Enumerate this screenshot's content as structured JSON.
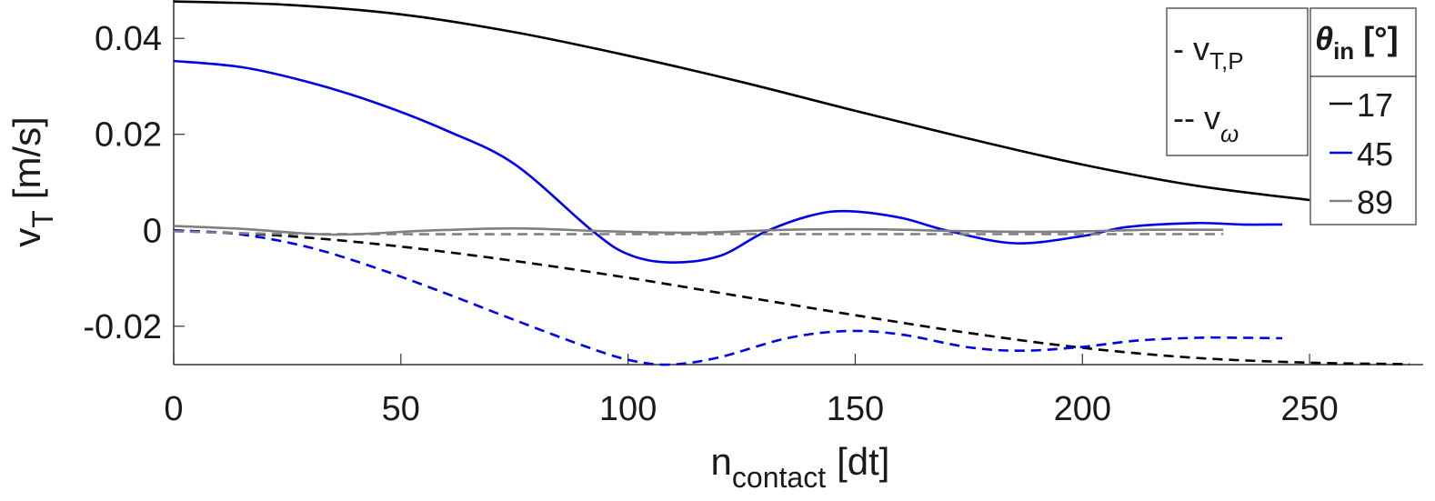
{
  "chart_data": {
    "type": "line",
    "xlabel_main": "n",
    "xlabel_sub": "contact",
    "xlabel_unit": "[dt]",
    "ylabel_main": "v",
    "ylabel_sub": "T",
    "ylabel_unit": "[m/s]",
    "xlim": [
      0,
      275
    ],
    "ylim": [
      -0.028,
      0.048
    ],
    "xticks": [
      0,
      50,
      100,
      150,
      200,
      250
    ],
    "xtick_labels": [
      "0",
      "50",
      "100",
      "150",
      "200",
      "250"
    ],
    "yticks": [
      -0.02,
      0,
      0.02,
      0.04
    ],
    "ytick_labels": [
      "-0.02",
      "0",
      "0.02",
      "0.04"
    ],
    "grid": false,
    "style_legend": {
      "location": "top-right",
      "entries": [
        {
          "marker": "-",
          "label": "v",
          "sub": "T,P",
          "dash": "solid"
        },
        {
          "marker": "--",
          "label": "v",
          "sub": "ω",
          "dash": "dashed"
        }
      ]
    },
    "angle_legend": {
      "location": "top-right",
      "title": "θ",
      "title_sub": "in",
      "title_unit": "[°]",
      "entries": [
        {
          "label": "17",
          "color": "#000000"
        },
        {
          "label": "45",
          "color": "#0000e6"
        },
        {
          "label": "89",
          "color": "#808080"
        }
      ]
    },
    "series": [
      {
        "name": "v_T,P 17°",
        "color": "#000000",
        "dash": "solid",
        "x": [
          0,
          25,
          50,
          75,
          100,
          125,
          150,
          175,
          200,
          225,
          250
        ],
        "y": [
          0.0477,
          0.047,
          0.045,
          0.0413,
          0.0364,
          0.0309,
          0.0249,
          0.0191,
          0.0137,
          0.0093,
          0.0063
        ]
      },
      {
        "name": "v_ω 17°",
        "color": "#000000",
        "dash": "dashed",
        "x": [
          0,
          25,
          50,
          75,
          100,
          125,
          150,
          175,
          200,
          225,
          250,
          272
        ],
        "y": [
          0.0,
          -0.0012,
          -0.0034,
          -0.0064,
          -0.0099,
          -0.0138,
          -0.0177,
          -0.0214,
          -0.0245,
          -0.0266,
          -0.0276,
          -0.0279
        ]
      },
      {
        "name": "v_T,P 45°",
        "color": "#0000e6",
        "dash": "solid",
        "x": [
          0,
          15,
          30,
          45,
          60,
          75,
          92,
          100,
          109,
          120,
          130,
          140,
          148,
          160,
          170,
          185,
          200,
          210,
          225,
          235,
          244
        ],
        "y": [
          0.0353,
          0.034,
          0.0308,
          0.0264,
          0.0208,
          0.0138,
          0.0,
          -0.005,
          -0.0067,
          -0.0054,
          -0.0004,
          0.003,
          0.004,
          0.0026,
          0.0,
          -0.0027,
          -0.0012,
          0.0007,
          0.0015,
          0.0012,
          0.0012
        ]
      },
      {
        "name": "v_ω 45°",
        "color": "#0000e6",
        "dash": "dashed",
        "x": [
          0,
          15,
          30,
          45,
          60,
          75,
          90,
          100,
          109,
          120,
          135,
          148,
          160,
          175,
          187,
          200,
          212,
          225,
          235,
          244
        ],
        "y": [
          0.0,
          -0.0009,
          -0.0036,
          -0.008,
          -0.0132,
          -0.0187,
          -0.024,
          -0.027,
          -0.028,
          -0.0265,
          -0.0225,
          -0.021,
          -0.0217,
          -0.0244,
          -0.0251,
          -0.0243,
          -0.023,
          -0.0224,
          -0.0224,
          -0.0225
        ]
      },
      {
        "name": "v_T,P 89°",
        "color": "#808080",
        "dash": "solid",
        "x": [
          0,
          15,
          35,
          55,
          75,
          95,
          115,
          135,
          155,
          175,
          195,
          215,
          231
        ],
        "y": [
          0.0009,
          0.0003,
          -0.0009,
          -0.0001,
          0.0004,
          -0.0002,
          -0.0005,
          0.0001,
          0.0002,
          -0.0002,
          -0.0003,
          0.0001,
          0.0001
        ]
      },
      {
        "name": "v_ω 89°",
        "color": "#808080",
        "dash": "dashed",
        "x": [
          0,
          20,
          50,
          100,
          150,
          200,
          231
        ],
        "y": [
          -0.0002,
          -0.0007,
          -0.0008,
          -0.0008,
          -0.0008,
          -0.0008,
          -0.0008
        ]
      }
    ]
  }
}
